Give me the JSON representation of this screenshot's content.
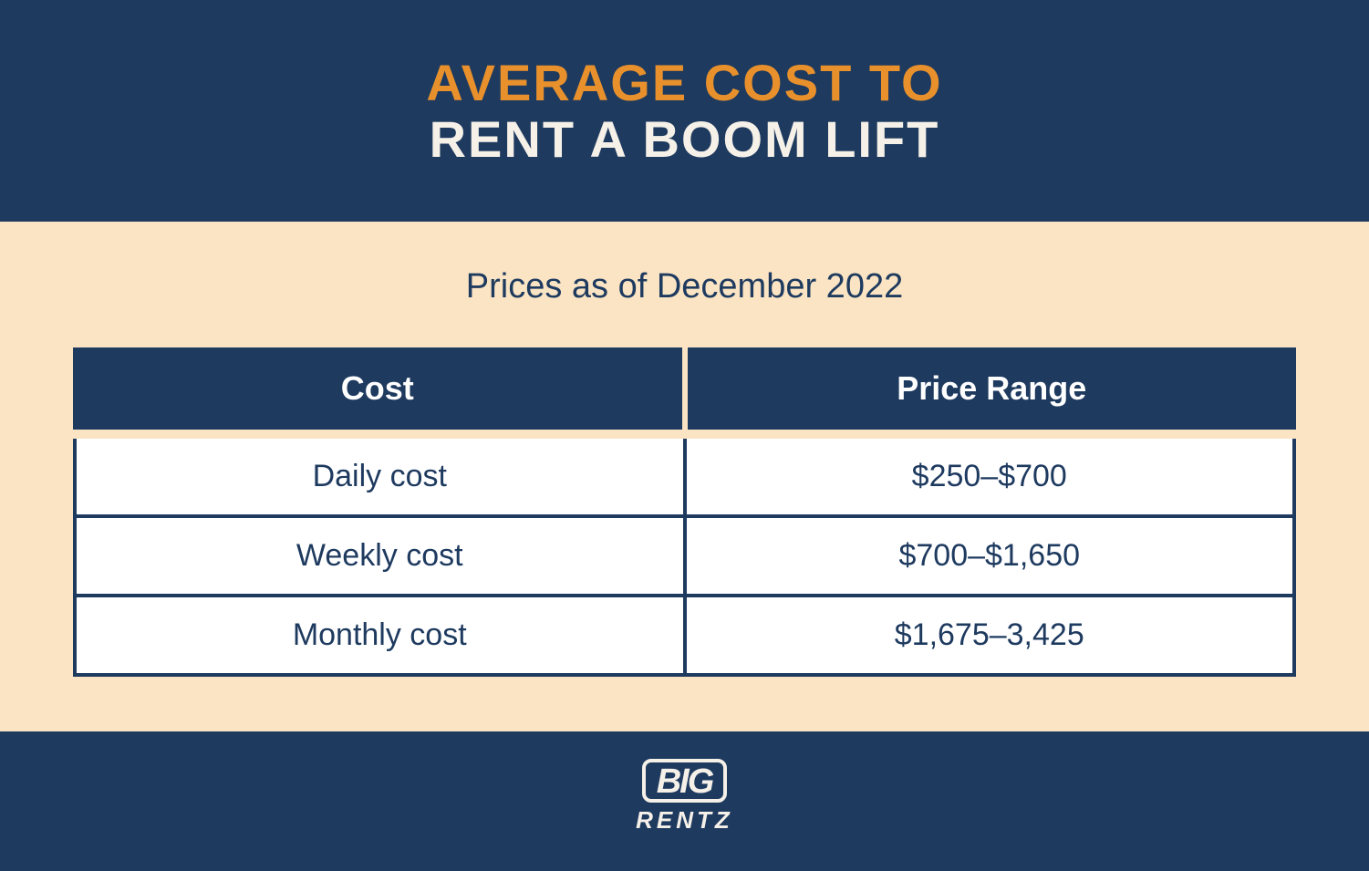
{
  "header": {
    "title_line1": "AVERAGE COST TO",
    "title_line2": "RENT A BOOM LIFT",
    "title_line1_color": "#e8912c",
    "title_line2_color": "#f5f0e8",
    "background_color": "#1e3a5f",
    "title_fontsize": 56,
    "title_fontweight": 900
  },
  "content": {
    "subtitle": "Prices as of December 2022",
    "subtitle_color": "#1e3a5f",
    "subtitle_fontsize": 38,
    "background_color": "#fae4c3"
  },
  "table": {
    "type": "table",
    "header_background_color": "#1e3a5f",
    "header_text_color": "#ffffff",
    "header_fontsize": 36,
    "row_background_color": "#ffffff",
    "row_text_color": "#1e3a5f",
    "row_fontsize": 34,
    "border_color": "#1e3a5f",
    "border_width": 4,
    "columns": [
      "Cost",
      "Price Range"
    ],
    "rows": [
      [
        "Daily cost",
        "$250–$700"
      ],
      [
        "Weekly cost",
        "$700–$1,650"
      ],
      [
        "Monthly cost",
        "$1,675–3,425"
      ]
    ]
  },
  "footer": {
    "background_color": "#1e3a5f",
    "logo_big": "BIG",
    "logo_rentz": "RENTZ",
    "logo_color": "#f5f0e8"
  }
}
